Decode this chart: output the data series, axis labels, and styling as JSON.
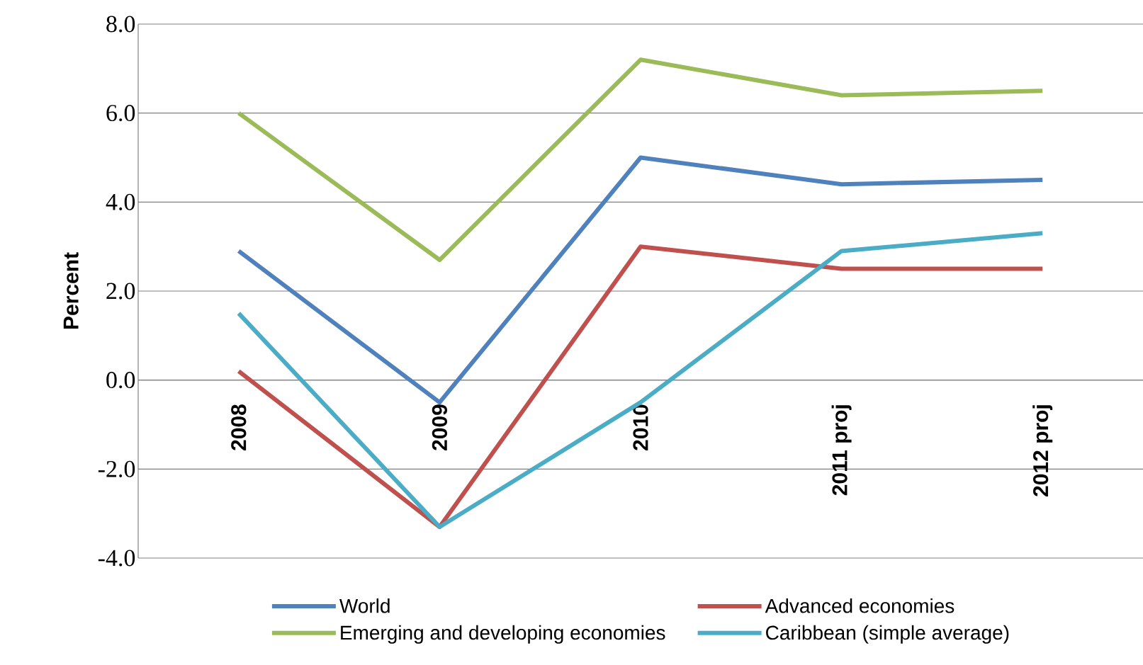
{
  "chart_data": {
    "type": "line",
    "ylabel": "Percent",
    "categories": [
      "2008",
      "2009",
      "2010",
      "2011 proj",
      "2012 proj"
    ],
    "series": [
      {
        "name": "World",
        "color": "#4f81bd",
        "values": [
          2.9,
          -0.5,
          5.0,
          4.4,
          4.5
        ]
      },
      {
        "name": "Advanced economies",
        "color": "#c0504d",
        "values": [
          0.2,
          -3.3,
          3.0,
          2.5,
          2.5
        ]
      },
      {
        "name": "Emerging and developing economies",
        "color": "#9bbb59",
        "values": [
          6.0,
          2.7,
          7.2,
          6.4,
          6.5
        ]
      },
      {
        "name": "Caribbean (simple average)",
        "color": "#4bacc6",
        "values": [
          1.5,
          -3.3,
          -0.5,
          2.9,
          3.3
        ]
      }
    ],
    "ylim": [
      -4,
      8
    ],
    "yticks": [
      {
        "value": -4,
        "label": "-4.0"
      },
      {
        "value": -2,
        "label": "-2.0"
      },
      {
        "value": 0,
        "label": "0.0"
      },
      {
        "value": 2,
        "label": "2.0"
      },
      {
        "value": 4,
        "label": "4.0"
      },
      {
        "value": 6,
        "label": "6.0"
      },
      {
        "value": 8,
        "label": "8.0"
      }
    ],
    "grid": "y",
    "legend": "bottom",
    "line_style": "solid"
  }
}
